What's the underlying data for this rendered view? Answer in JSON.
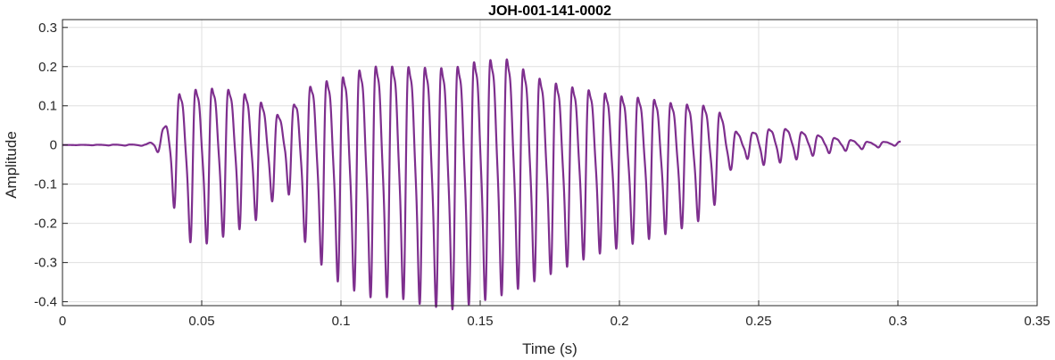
{
  "chart_data": {
    "type": "line",
    "title": "JOH-001-141-0002",
    "xlabel": "Time (s)",
    "ylabel": "Amplitude",
    "xlim": [
      0,
      0.35
    ],
    "ylim": [
      -0.41,
      0.32
    ],
    "x_ticks": [
      0,
      0.05,
      0.1,
      0.15,
      0.2,
      0.25,
      0.3,
      0.35
    ],
    "x_tick_labels": [
      "0",
      "0.05",
      "0.1",
      "0.15",
      "0.2",
      "0.25",
      "0.3",
      "0.35"
    ],
    "y_ticks": [
      -0.4,
      -0.3,
      -0.2,
      -0.1,
      0,
      0.1,
      0.2,
      0.3
    ],
    "y_tick_labels": [
      "-0.4",
      "-0.3",
      "-0.2",
      "-0.1",
      "0",
      "0.1",
      "0.2",
      "0.3"
    ],
    "grid": true,
    "series": [
      {
        "color": "#7e2f8e",
        "envelope": {
          "t": [
            0,
            0.03,
            0.035,
            0.038,
            0.042,
            0.048,
            0.055,
            0.062,
            0.07,
            0.075,
            0.08,
            0.085,
            0.09,
            0.1,
            0.11,
            0.12,
            0.13,
            0.14,
            0.15,
            0.16,
            0.17,
            0.18,
            0.19,
            0.2,
            0.21,
            0.22,
            0.23,
            0.236,
            0.24,
            0.245,
            0.25,
            0.26,
            0.27,
            0.28,
            0.29,
            0.301
          ],
          "pos": [
            0,
            0.002,
            0.03,
            0.1,
            0.19,
            0.21,
            0.21,
            0.2,
            0.17,
            0.12,
            0.1,
            0.18,
            0.23,
            0.26,
            0.3,
            0.3,
            0.3,
            0.3,
            0.32,
            0.32,
            0.26,
            0.23,
            0.21,
            0.19,
            0.18,
            0.16,
            0.15,
            0.12,
            0.06,
            0.03,
            0.055,
            0.055,
            0.035,
            0.02,
            0.01,
            0.01
          ],
          "neg": [
            0,
            -0.002,
            -0.02,
            -0.09,
            -0.21,
            -0.25,
            -0.23,
            -0.21,
            -0.18,
            -0.14,
            -0.09,
            -0.21,
            -0.27,
            -0.34,
            -0.37,
            -0.37,
            -0.39,
            -0.4,
            -0.38,
            -0.36,
            -0.33,
            -0.3,
            -0.27,
            -0.25,
            -0.23,
            -0.21,
            -0.18,
            -0.13,
            -0.06,
            -0.03,
            -0.05,
            -0.04,
            -0.025,
            -0.015,
            -0.008,
            0
          ]
        },
        "f0_hz": 170
      }
    ]
  }
}
